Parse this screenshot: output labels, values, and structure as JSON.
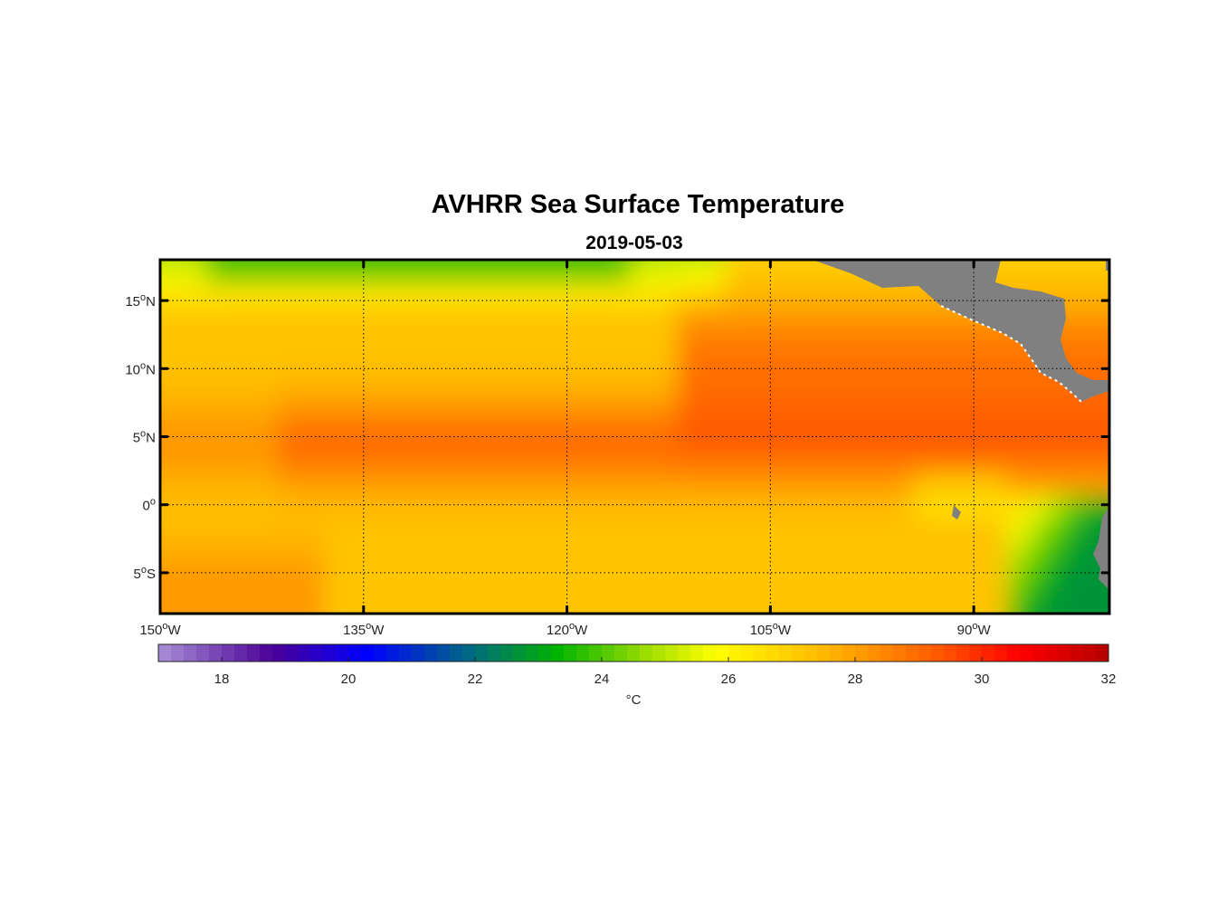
{
  "chart_data": {
    "type": "heatmap",
    "title": "AVHRR Sea Surface Temperature",
    "subtitle": "2019-05-03",
    "xlim": [
      -150,
      -80
    ],
    "ylim": [
      -8,
      18
    ],
    "grid": true,
    "x_ticks": [
      {
        "value": -150,
        "num": "150",
        "deg": "o",
        "hem": "W"
      },
      {
        "value": -135,
        "num": "135",
        "deg": "o",
        "hem": "W"
      },
      {
        "value": -120,
        "num": "120",
        "deg": "o",
        "hem": "W"
      },
      {
        "value": -105,
        "num": "105",
        "deg": "o",
        "hem": "W"
      },
      {
        "value": -90,
        "num": "90",
        "deg": "o",
        "hem": "W"
      }
    ],
    "y_ticks": [
      {
        "value": 15,
        "num": "15",
        "deg": "o",
        "hem": "N"
      },
      {
        "value": 10,
        "num": "10",
        "deg": "o",
        "hem": "N"
      },
      {
        "value": 5,
        "num": "5",
        "deg": "o",
        "hem": "N"
      },
      {
        "value": 0,
        "num": "0",
        "deg": "o",
        "hem": ""
      },
      {
        "value": -5,
        "num": "5",
        "deg": "o",
        "hem": "S"
      }
    ],
    "colorbar": {
      "min": 17,
      "max": 32,
      "ticks": [
        "18",
        "20",
        "22",
        "24",
        "26",
        "28",
        "30",
        "32"
      ],
      "unit": "°C",
      "stops": [
        {
          "value": 17,
          "color": "#a98fd6"
        },
        {
          "value": 18.8,
          "color": "#4b0096"
        },
        {
          "value": 20.3,
          "color": "#0000ff"
        },
        {
          "value": 22,
          "color": "#006e7a"
        },
        {
          "value": 23.3,
          "color": "#00b400"
        },
        {
          "value": 24.8,
          "color": "#a8e000"
        },
        {
          "value": 25.8,
          "color": "#ffff00"
        },
        {
          "value": 27.6,
          "color": "#ffb400"
        },
        {
          "value": 29.3,
          "color": "#ff5a00"
        },
        {
          "value": 30.6,
          "color": "#ff0000"
        },
        {
          "value": 32,
          "color": "#b40000"
        }
      ]
    },
    "land_color": "#808080"
  }
}
